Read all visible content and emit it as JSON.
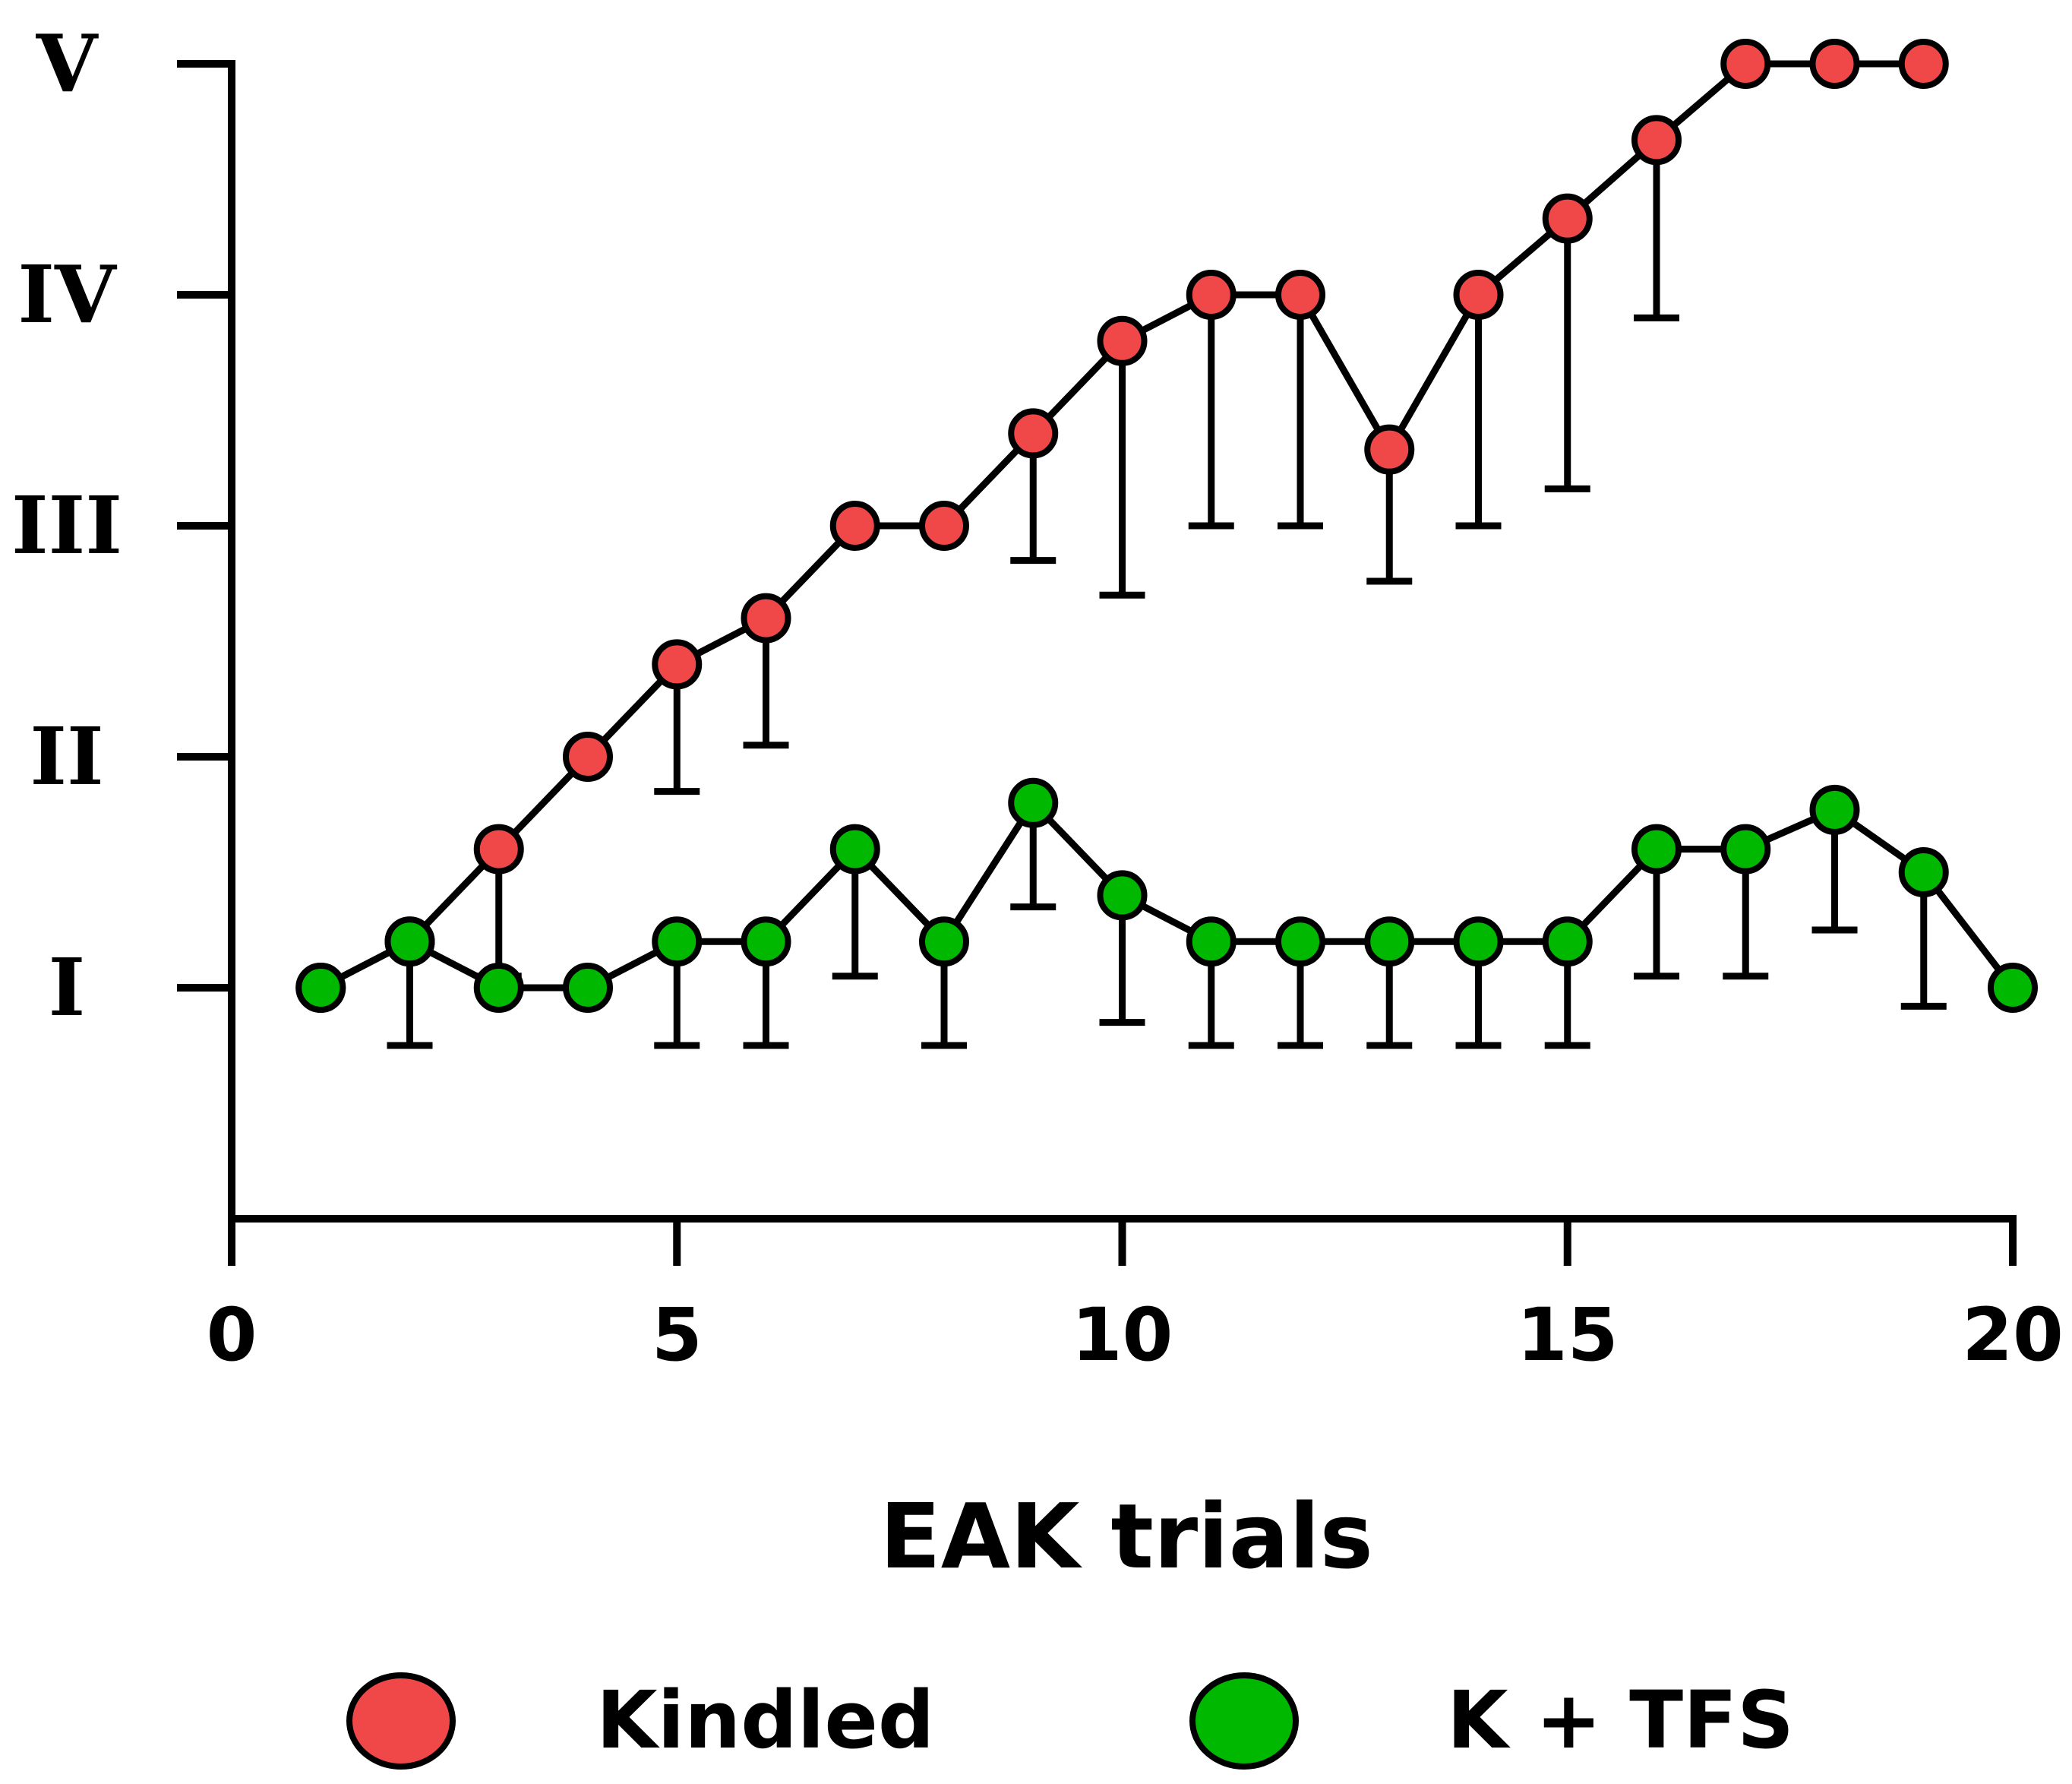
{
  "chart_data": {
    "type": "line",
    "title": "",
    "xlabel": "EAK trials",
    "ylabel": "",
    "xlim": [
      0,
      20
    ],
    "ylim": [
      0,
      5
    ],
    "x_ticks": [
      0,
      5,
      10,
      15,
      20
    ],
    "x_tick_labels": [
      "0",
      "5",
      "10",
      "15",
      "20"
    ],
    "y_ticks": [
      1,
      2,
      3,
      4,
      5
    ],
    "y_tick_labels": [
      "I",
      "II",
      "III",
      "IV",
      "V"
    ],
    "legend_position": "bottom",
    "series": [
      {
        "name": "Kindled",
        "color": "#f04848",
        "error_direction": "down",
        "x": [
          1,
          2,
          3,
          4,
          5,
          6,
          7,
          8,
          9,
          10,
          11,
          12,
          13,
          14,
          15,
          16,
          17,
          18,
          19
        ],
        "values": [
          1.0,
          1.2,
          1.6,
          2.0,
          2.4,
          2.6,
          3.0,
          3.0,
          3.4,
          3.8,
          4.0,
          4.0,
          3.33,
          4.0,
          4.33,
          4.67,
          5.0,
          5.0,
          5.0
        ],
        "error": [
          0,
          0.45,
          0.55,
          0,
          0.55,
          0.55,
          0,
          0,
          0.55,
          1.1,
          1.0,
          1.0,
          0.57,
          1.0,
          1.17,
          0.77,
          0,
          0,
          0
        ]
      },
      {
        "name": "K + TFS",
        "color": "#00b800",
        "error_direction": "down",
        "x": [
          1,
          2,
          3,
          4,
          5,
          6,
          7,
          8,
          9,
          10,
          11,
          12,
          13,
          14,
          15,
          16,
          17,
          18,
          19,
          20
        ],
        "values": [
          1.0,
          1.2,
          1.0,
          1.0,
          1.2,
          1.2,
          1.6,
          1.2,
          1.8,
          1.4,
          1.2,
          1.2,
          1.2,
          1.2,
          1.2,
          1.6,
          1.6,
          1.77,
          1.5,
          1.0
        ],
        "error": [
          0,
          0,
          0,
          0,
          0.45,
          0.45,
          0.55,
          0.45,
          0.45,
          0.55,
          0.45,
          0.45,
          0.45,
          0.45,
          0.45,
          0.55,
          0.55,
          0.52,
          0.58,
          0
        ]
      }
    ]
  }
}
